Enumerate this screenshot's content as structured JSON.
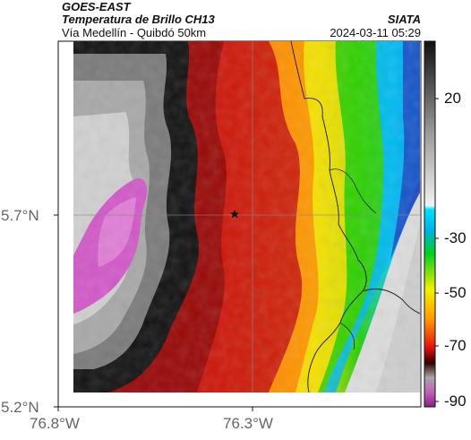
{
  "header": {
    "agency": "GOES-EAST",
    "product": "Temperatura de Brillo CH13",
    "region": "Vía Medellín - Quibdó 50km",
    "organization": "SIATA",
    "timestamp": "2024-03-11 05:29"
  },
  "axes": {
    "lat_ticks": [
      "5.7°N",
      "5.2°N"
    ],
    "lon_ticks": [
      "76.8°W",
      "76.3°W"
    ]
  },
  "colorbar": {
    "ticks": [
      "20",
      "-30",
      "-50",
      "-70",
      "-90"
    ],
    "colors": {
      "cold_magenta": "#d050c0",
      "grey": "#8a8a8a",
      "black": "#0a0a0a",
      "red": "#e01010",
      "orange": "#ff7a00",
      "yellow": "#f5e000",
      "green": "#28d000",
      "cyan": "#00c8ff",
      "blue": "#1a40c0",
      "warm_grey": "#dcdcdc"
    }
  },
  "marker": {
    "icon": "star-icon"
  }
}
